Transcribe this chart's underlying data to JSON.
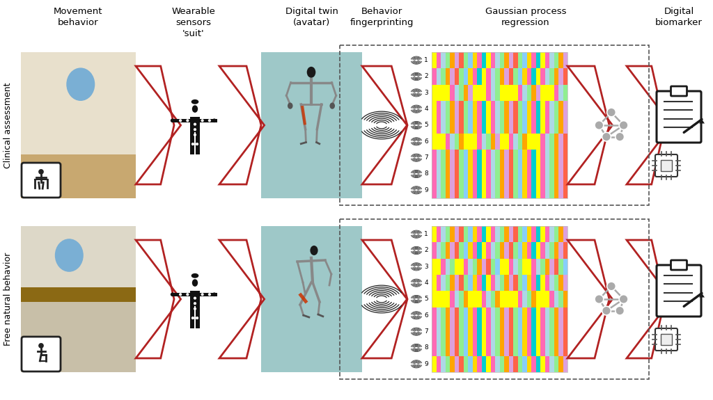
{
  "background_color": "#ffffff",
  "column_headers": [
    "Movement\nbehavior",
    "Wearable\nsensors\n'suit'",
    "Digital twin\n(avatar)",
    "Behavior\nfingerprinting",
    "Gaussian process\nregression",
    "Digital\nbiomarker"
  ],
  "row_labels": [
    "Clinical assessment",
    "Free natural behavior"
  ],
  "header_fontsize": 9.5,
  "label_fontsize": 9,
  "arrow_color": "#b22222",
  "dashed_box_color": "#555555",
  "row_numbers": [
    "1",
    "2",
    "3",
    "4",
    "5",
    "6",
    "7",
    "8",
    "9"
  ],
  "photo1_bg": "#d4c9b0",
  "photo2_bg": "#c8bea8",
  "avatar_bg": "#9ec8c8",
  "heatmap_colors_row1": [
    [
      "#ffff00",
      "#ff69b4",
      "#add8e6",
      "#90ee90",
      "#ffa500",
      "#dda0dd",
      "#ff6347",
      "#90ee90",
      "#87cefa",
      "#ffd700",
      "#ff69b4",
      "#00ced1",
      "#ffff00",
      "#ff69b4",
      "#add8e6",
      "#90ee90",
      "#ffa500",
      "#dda0dd",
      "#ff6347",
      "#90ee90",
      "#87cefa",
      "#ffd700",
      "#ff69b4",
      "#00ced1",
      "#ffff00",
      "#ff69b4",
      "#add8e6",
      "#90ee90",
      "#ffa500",
      "#dda0dd"
    ],
    [
      "#ff69b4",
      "#add8e6",
      "#90ee90",
      "#ffa500",
      "#dda0dd",
      "#ff6347",
      "#90ee90",
      "#87cefa",
      "#ffd700",
      "#ff69b4",
      "#00ced1",
      "#ffff00",
      "#ff69b4",
      "#add8e6",
      "#90ee90",
      "#ffa500",
      "#dda0dd",
      "#ff6347",
      "#90ee90",
      "#87cefa",
      "#ffd700",
      "#ff69b4",
      "#00ced1",
      "#ffff00",
      "#ff69b4",
      "#add8e6",
      "#90ee90",
      "#ffa500",
      "#dda0dd",
      "#ff6347"
    ],
    [
      "#ffff00",
      "#ffff00",
      "#ffff00",
      "#ffff00",
      "#ff69b4",
      "#add8e6",
      "#90ee90",
      "#ffa500",
      "#dda0dd",
      "#ffff00",
      "#ffff00",
      "#ffff00",
      "#ff69b4",
      "#add8e6",
      "#90ee90",
      "#ffff00",
      "#ffff00",
      "#ffff00",
      "#ffff00",
      "#ff69b4",
      "#add8e6",
      "#90ee90",
      "#ffa500",
      "#dda0dd",
      "#ffff00",
      "#ffff00",
      "#ffff00",
      "#ff69b4",
      "#add8e6",
      "#90ee90"
    ],
    [
      "#ffff00",
      "#ff69b4",
      "#add8e6",
      "#90ee90",
      "#ffa500",
      "#dda0dd",
      "#ff6347",
      "#90ee90",
      "#87cefa",
      "#ffd700",
      "#ff69b4",
      "#00ced1",
      "#ffff00",
      "#ff69b4",
      "#add8e6",
      "#90ee90",
      "#ffa500",
      "#dda0dd",
      "#ff6347",
      "#90ee90",
      "#87cefa",
      "#ffd700",
      "#ff69b4",
      "#00ced1",
      "#ffff00",
      "#ff69b4",
      "#add8e6",
      "#90ee90",
      "#ffa500",
      "#dda0dd"
    ],
    [
      "#ffff00",
      "#ff69b4",
      "#add8e6",
      "#90ee90",
      "#ffa500",
      "#dda0dd",
      "#ff6347",
      "#90ee90",
      "#87cefa",
      "#ffd700",
      "#ff69b4",
      "#00ced1",
      "#ffff00",
      "#ff69b4",
      "#add8e6",
      "#90ee90",
      "#ffa500",
      "#dda0dd",
      "#ff6347",
      "#90ee90",
      "#87cefa",
      "#ffd700",
      "#ff69b4",
      "#00ced1",
      "#ffff00",
      "#ff69b4",
      "#add8e6",
      "#90ee90",
      "#ffa500",
      "#dda0dd"
    ],
    [
      "#ffff00",
      "#ffff00",
      "#ffff00",
      "#ff69b4",
      "#add8e6",
      "#90ee90",
      "#ffa500",
      "#ffff00",
      "#ffff00",
      "#ffff00",
      "#ff69b4",
      "#add8e6",
      "#90ee90",
      "#ffa500",
      "#dda0dd",
      "#ffff00",
      "#ffff00",
      "#ff69b4",
      "#add8e6",
      "#90ee90",
      "#ffa500",
      "#ffff00",
      "#ffff00",
      "#ffff00",
      "#ff69b4",
      "#add8e6",
      "#90ee90",
      "#ffa500",
      "#dda0dd",
      "#ff6347"
    ],
    [
      "#ff69b4",
      "#add8e6",
      "#90ee90",
      "#ffa500",
      "#dda0dd",
      "#ff6347",
      "#90ee90",
      "#87cefa",
      "#ffd700",
      "#ff69b4",
      "#00ced1",
      "#ffff00",
      "#ff69b4",
      "#add8e6",
      "#90ee90",
      "#ffa500",
      "#dda0dd",
      "#ff6347",
      "#90ee90",
      "#87cefa",
      "#ffd700",
      "#ff69b4",
      "#00ced1",
      "#ffff00",
      "#ff69b4",
      "#add8e6",
      "#90ee90",
      "#ffa500",
      "#dda0dd",
      "#ff6347"
    ],
    [
      "#ff69b4",
      "#add8e6",
      "#90ee90",
      "#ffa500",
      "#dda0dd",
      "#ff6347",
      "#90ee90",
      "#87cefa",
      "#ffd700",
      "#ff69b4",
      "#00ced1",
      "#ffff00",
      "#ff69b4",
      "#add8e6",
      "#90ee90",
      "#ffa500",
      "#dda0dd",
      "#ff6347",
      "#90ee90",
      "#87cefa",
      "#ffd700",
      "#ff69b4",
      "#00ced1",
      "#ffff00",
      "#ff69b4",
      "#add8e6",
      "#90ee90",
      "#ffa500",
      "#dda0dd",
      "#ff6347"
    ],
    [
      "#ff69b4",
      "#add8e6",
      "#90ee90",
      "#ffa500",
      "#dda0dd",
      "#ff6347",
      "#90ee90",
      "#87cefa",
      "#ffd700",
      "#ff69b4",
      "#00ced1",
      "#ffff00",
      "#ff69b4",
      "#add8e6",
      "#90ee90",
      "#ffa500",
      "#dda0dd",
      "#ff6347",
      "#90ee90",
      "#87cefa",
      "#ffd700",
      "#ff69b4",
      "#00ced1",
      "#ffff00",
      "#ff69b4",
      "#add8e6",
      "#90ee90",
      "#ffa500",
      "#dda0dd",
      "#ff6347"
    ]
  ],
  "heatmap_colors_row2": [
    [
      "#ffff00",
      "#ff69b4",
      "#add8e6",
      "#90ee90",
      "#ffa500",
      "#dda0dd",
      "#ff6347",
      "#90ee90",
      "#87cefa",
      "#ffd700",
      "#ff69b4",
      "#00ced1",
      "#ffff00",
      "#ff69b4",
      "#add8e6",
      "#90ee90",
      "#ffa500",
      "#dda0dd",
      "#ff6347",
      "#90ee90",
      "#87cefa",
      "#ffd700",
      "#ff69b4",
      "#00ced1",
      "#ffff00",
      "#ff69b4",
      "#add8e6",
      "#90ee90",
      "#ffa500",
      "#dda0dd"
    ],
    [
      "#ff69b4",
      "#add8e6",
      "#90ee90",
      "#ffa500",
      "#dda0dd",
      "#ff6347",
      "#90ee90",
      "#87cefa",
      "#ffd700",
      "#ff69b4",
      "#00ced1",
      "#ffff00",
      "#ff69b4",
      "#add8e6",
      "#90ee90",
      "#ffa500",
      "#dda0dd",
      "#ff6347",
      "#90ee90",
      "#87cefa",
      "#ffd700",
      "#ff69b4",
      "#00ced1",
      "#ffff00",
      "#ff69b4",
      "#add8e6",
      "#90ee90",
      "#ffa500",
      "#dda0dd",
      "#ff6347"
    ],
    [
      "#ffff00",
      "#ffff00",
      "#ff69b4",
      "#add8e6",
      "#90ee90",
      "#ffff00",
      "#ffff00",
      "#ff69b4",
      "#add8e6",
      "#90ee90",
      "#ffa500",
      "#dda0dd",
      "#ff6347",
      "#90ee90",
      "#87cefa",
      "#ffff00",
      "#ffff00",
      "#ff69b4",
      "#add8e6",
      "#90ee90",
      "#ffff00",
      "#ffff00",
      "#ff69b4",
      "#add8e6",
      "#90ee90",
      "#ffa500",
      "#dda0dd",
      "#ff6347",
      "#90ee90",
      "#87cefa"
    ],
    [
      "#ffff00",
      "#ff69b4",
      "#add8e6",
      "#90ee90",
      "#ffa500",
      "#dda0dd",
      "#ff6347",
      "#90ee90",
      "#87cefa",
      "#ffd700",
      "#ff69b4",
      "#00ced1",
      "#ffff00",
      "#ff69b4",
      "#add8e6",
      "#90ee90",
      "#ffa500",
      "#dda0dd",
      "#ff6347",
      "#90ee90",
      "#87cefa",
      "#ffd700",
      "#ff69b4",
      "#00ced1",
      "#ffff00",
      "#ff69b4",
      "#add8e6",
      "#90ee90",
      "#ffa500",
      "#dda0dd"
    ],
    [
      "#ffff00",
      "#ffff00",
      "#ffff00",
      "#ffff00",
      "#ff69b4",
      "#add8e6",
      "#90ee90",
      "#ffa500",
      "#ffff00",
      "#ffff00",
      "#ffff00",
      "#ff69b4",
      "#add8e6",
      "#90ee90",
      "#ffa500",
      "#ffff00",
      "#ffff00",
      "#ffff00",
      "#ffff00",
      "#ff69b4",
      "#add8e6",
      "#90ee90",
      "#ffa500",
      "#ffff00",
      "#ffff00",
      "#ffff00",
      "#ff69b4",
      "#add8e6",
      "#90ee90",
      "#ffa500"
    ],
    [
      "#ff69b4",
      "#add8e6",
      "#90ee90",
      "#ffa500",
      "#dda0dd",
      "#ff6347",
      "#90ee90",
      "#87cefa",
      "#ffd700",
      "#ff69b4",
      "#00ced1",
      "#ffff00",
      "#ff69b4",
      "#add8e6",
      "#90ee90",
      "#ffa500",
      "#dda0dd",
      "#ff6347",
      "#90ee90",
      "#87cefa",
      "#ffd700",
      "#ff69b4",
      "#00ced1",
      "#ffff00",
      "#ff69b4",
      "#add8e6",
      "#90ee90",
      "#ffa500",
      "#dda0dd",
      "#ff6347"
    ],
    [
      "#ff69b4",
      "#add8e6",
      "#90ee90",
      "#ffa500",
      "#dda0dd",
      "#ff6347",
      "#90ee90",
      "#87cefa",
      "#ffd700",
      "#ff69b4",
      "#00ced1",
      "#ffff00",
      "#ff69b4",
      "#add8e6",
      "#90ee90",
      "#ffa500",
      "#dda0dd",
      "#ff6347",
      "#90ee90",
      "#87cefa",
      "#ffd700",
      "#ff69b4",
      "#00ced1",
      "#ffff00",
      "#ff69b4",
      "#add8e6",
      "#90ee90",
      "#ffa500",
      "#dda0dd",
      "#ff6347"
    ],
    [
      "#ff69b4",
      "#add8e6",
      "#90ee90",
      "#ffa500",
      "#dda0dd",
      "#ff6347",
      "#90ee90",
      "#87cefa",
      "#ffd700",
      "#ff69b4",
      "#00ced1",
      "#ffff00",
      "#ff69b4",
      "#add8e6",
      "#90ee90",
      "#ffa500",
      "#dda0dd",
      "#ff6347",
      "#90ee90",
      "#87cefa",
      "#ffd700",
      "#ff69b4",
      "#00ced1",
      "#ffff00",
      "#ff69b4",
      "#add8e6",
      "#90ee90",
      "#ffa500",
      "#dda0dd",
      "#ff6347"
    ],
    [
      "#ffff00",
      "#ff69b4",
      "#add8e6",
      "#90ee90",
      "#ffa500",
      "#dda0dd",
      "#ff6347",
      "#90ee90",
      "#87cefa",
      "#ffd700",
      "#ff69b4",
      "#00ced1",
      "#ffff00",
      "#ff69b4",
      "#add8e6",
      "#90ee90",
      "#ffa500",
      "#dda0dd",
      "#ff6347",
      "#90ee90",
      "#87cefa",
      "#ffd700",
      "#ff69b4",
      "#00ced1",
      "#ffff00",
      "#ff69b4",
      "#add8e6",
      "#90ee90",
      "#ffa500",
      "#dda0dd"
    ]
  ]
}
